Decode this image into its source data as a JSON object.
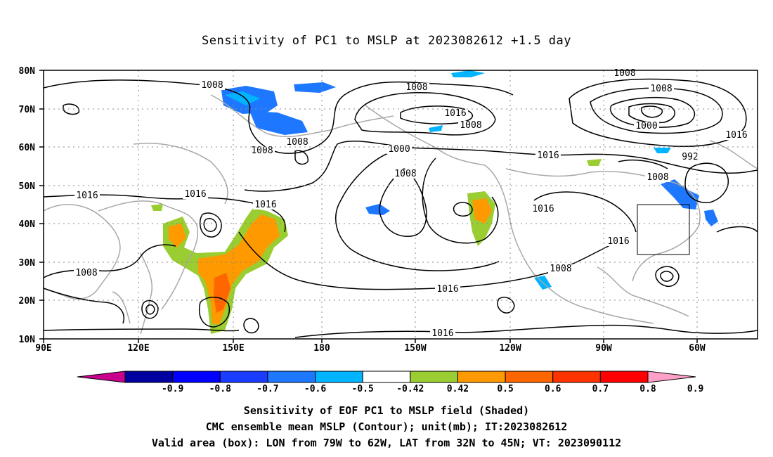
{
  "title": "Sensitivity of PC1 to MSLP at 2023082612 +1.5 day",
  "map": {
    "lat_labels": [
      "80N",
      "70N",
      "60N",
      "50N",
      "40N",
      "30N",
      "20N",
      "10N"
    ],
    "lon_labels": [
      "90E",
      "120E",
      "150E",
      "180",
      "150W",
      "120W",
      "90W",
      "60W"
    ],
    "contour_labels": [
      "1008",
      "1008",
      "1008",
      "1008",
      "1016",
      "1016",
      "1008",
      "1016",
      "1008",
      "1000",
      "1008",
      "1016",
      "1016",
      "1016",
      "1016",
      "1016",
      "1008",
      "1008",
      "1000",
      "992",
      "1008",
      "1016",
      "1016",
      "1008",
      "1008"
    ],
    "valid_box": {
      "lon_range": [
        "79W",
        "62W"
      ],
      "lat_range": [
        "32N",
        "45N"
      ]
    }
  },
  "colorbar": {
    "labels": [
      "-0.9",
      "-0.8",
      "-0.7",
      "-0.6",
      "-0.5",
      "-0.42",
      "0.42",
      "0.5",
      "0.6",
      "0.7",
      "0.8",
      "0.9"
    ],
    "colors": [
      "#c8008c",
      "#0000a0",
      "#0000ff",
      "#1a3cff",
      "#1e78ff",
      "#00b4ff",
      "#ffffff",
      "#9acd32",
      "#ff9900",
      "#ff6600",
      "#ff3300",
      "#ff0000",
      "#ffa0c8"
    ]
  },
  "captions": {
    "line1": "Sensitivity of EOF PC1 to MSLP field (Shaded)",
    "line2": "CMC ensemble mean MSLP (Contour); unit(mb); IT:2023082612",
    "line3": "Valid area (box): LON from 79W to 62W, LAT from 32N to 45N; VT: 2023090112"
  }
}
